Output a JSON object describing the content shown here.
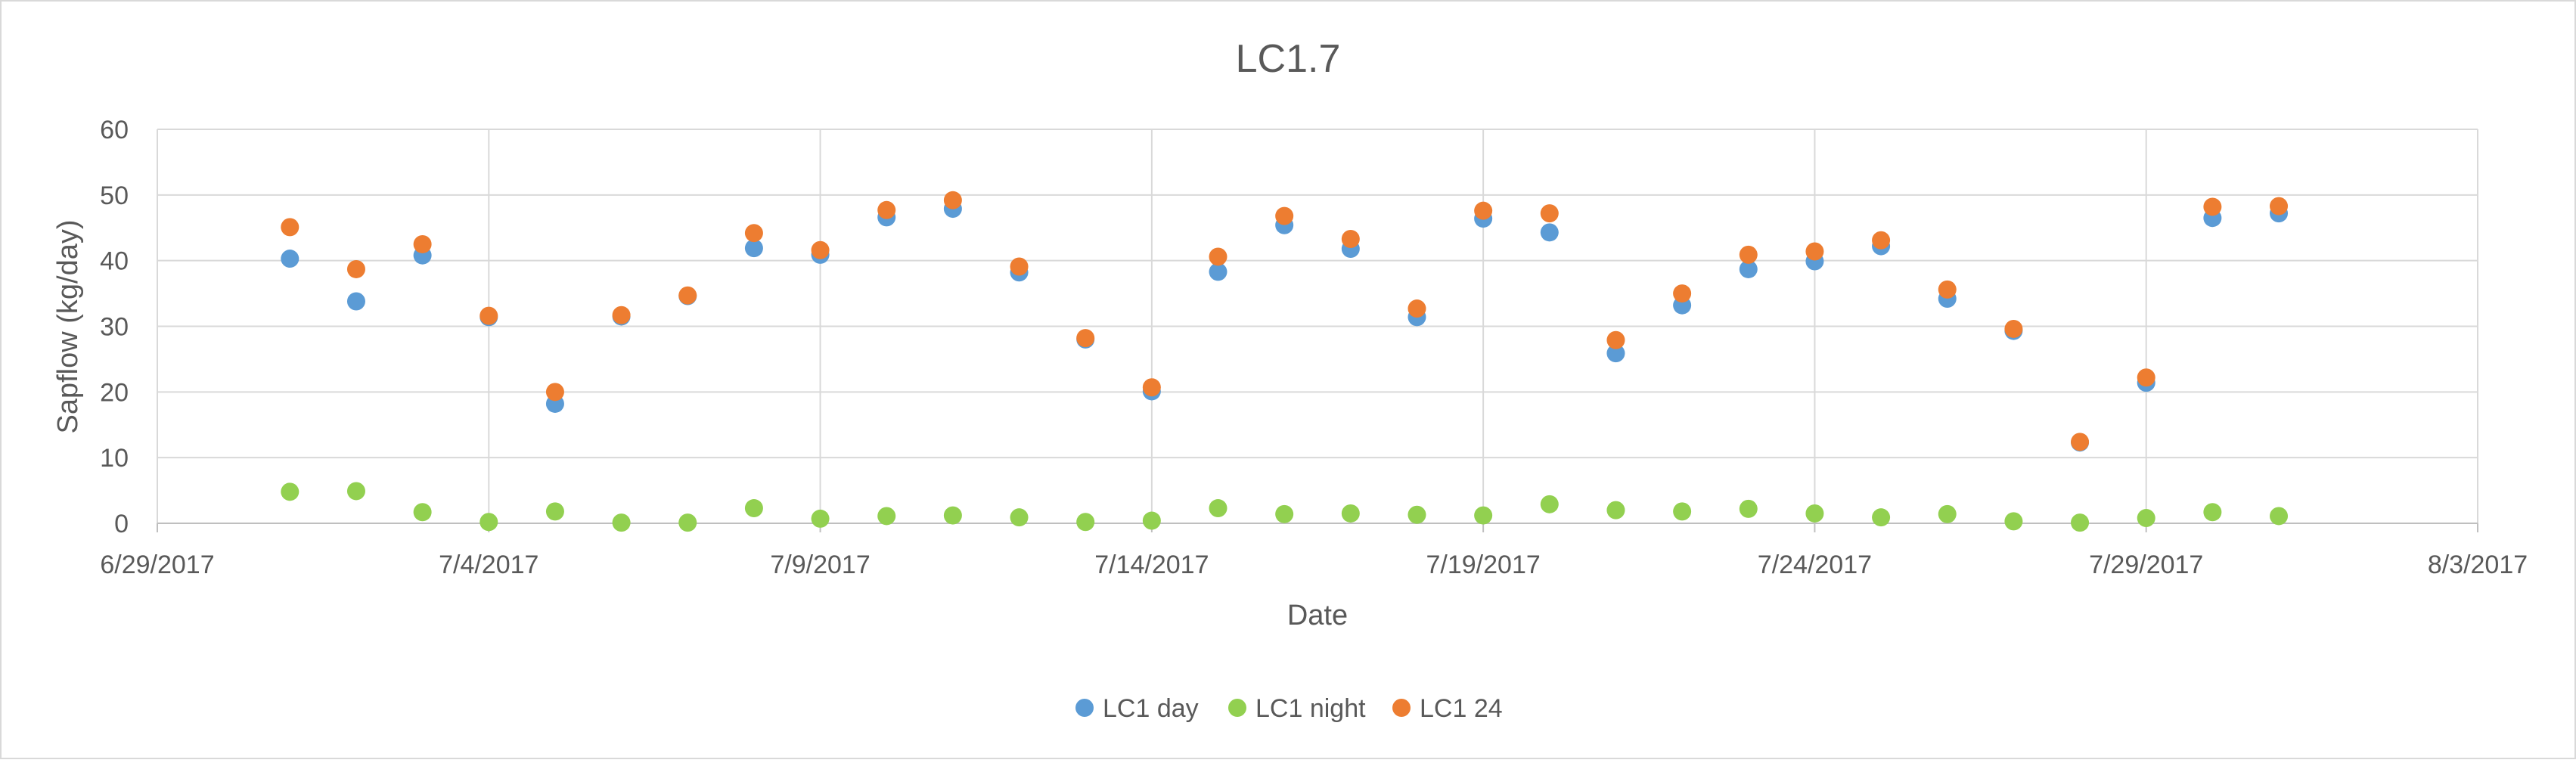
{
  "chart_data": {
    "type": "scatter",
    "title": "LC1.7",
    "xlabel": "Date",
    "ylabel": "Sapflow (kg/day)",
    "ylim": [
      0,
      60
    ],
    "yticks": [
      "0",
      "10",
      "20",
      "30",
      "40",
      "50",
      "60"
    ],
    "xlim": [
      "2017-06-29",
      "2017-08-03"
    ],
    "xticks": [
      "6/29/2017",
      "7/4/2017",
      "7/9/2017",
      "7/14/2017",
      "7/19/2017",
      "7/24/2017",
      "7/29/2017",
      "8/3/2017"
    ],
    "grid": "both",
    "legend_position": "bottom",
    "dates": [
      "2017-07-01",
      "2017-07-02",
      "2017-07-03",
      "2017-07-04",
      "2017-07-05",
      "2017-07-06",
      "2017-07-07",
      "2017-07-08",
      "2017-07-09",
      "2017-07-10",
      "2017-07-11",
      "2017-07-12",
      "2017-07-13",
      "2017-07-14",
      "2017-07-15",
      "2017-07-16",
      "2017-07-17",
      "2017-07-18",
      "2017-07-19",
      "2017-07-20",
      "2017-07-21",
      "2017-07-22",
      "2017-07-23",
      "2017-07-24",
      "2017-07-25",
      "2017-07-26",
      "2017-07-27",
      "2017-07-28",
      "2017-07-29",
      "2017-07-30",
      "2017-07-31"
    ],
    "series": [
      {
        "name": "LC1 day",
        "color": "#5B9BD5",
        "values": [
          40.3,
          33.8,
          40.8,
          31.4,
          18.2,
          31.5,
          34.6,
          41.9,
          40.9,
          46.6,
          47.9,
          38.2,
          28.0,
          20.1,
          38.3,
          45.4,
          41.8,
          31.4,
          46.4,
          44.3,
          25.9,
          33.2,
          38.7,
          39.9,
          42.2,
          34.2,
          29.3,
          12.3,
          21.4,
          46.5,
          47.2
        ]
      },
      {
        "name": "LC1 night",
        "color": "#92D050",
        "values": [
          4.8,
          4.9,
          1.7,
          0.2,
          1.8,
          0.1,
          0.1,
          2.3,
          0.7,
          1.1,
          1.2,
          0.9,
          0.2,
          0.4,
          2.3,
          1.4,
          1.5,
          1.3,
          1.2,
          2.9,
          2.0,
          1.8,
          2.2,
          1.5,
          0.9,
          1.4,
          0.3,
          0.1,
          0.8,
          1.7,
          1.1
        ]
      },
      {
        "name": "LC1 24",
        "color": "#ED7D31",
        "values": [
          45.1,
          38.7,
          42.5,
          31.6,
          20.0,
          31.7,
          34.7,
          44.2,
          41.6,
          47.7,
          49.2,
          39.1,
          28.2,
          20.7,
          40.6,
          46.8,
          43.3,
          32.7,
          47.6,
          47.2,
          27.9,
          35.0,
          40.9,
          41.4,
          43.1,
          35.6,
          29.6,
          12.4,
          22.2,
          48.2,
          48.3
        ]
      }
    ]
  }
}
